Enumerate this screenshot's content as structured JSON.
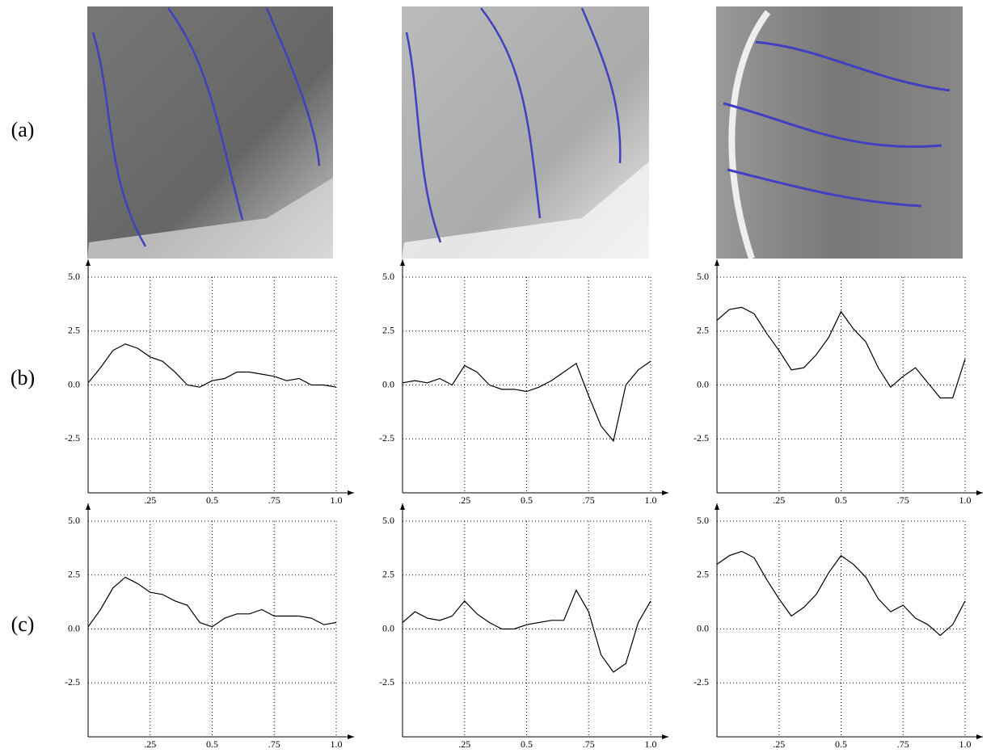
{
  "row_labels": [
    "(a)",
    "(b)",
    "(c)"
  ],
  "chart_data": [
    {
      "type": "line",
      "color": "#000000",
      "grid": true,
      "xlim": [
        0,
        1
      ],
      "ylim": [
        -5,
        5
      ],
      "xticks": [
        {
          "value": 0.25,
          "label": ".25"
        },
        0.5,
        {
          "value": 0.75,
          "label": ".75"
        },
        {
          "value": 1,
          "label": "1.0"
        }
      ],
      "yticks": [
        {
          "value": 5,
          "label": "5.0"
        },
        2.5,
        {
          "value": 0,
          "label": "0.0"
        },
        -2.5
      ],
      "x": [
        0,
        0.05,
        0.1,
        0.15,
        0.2,
        0.25,
        0.3,
        0.35,
        0.4,
        0.45,
        0.5,
        0.55,
        0.6,
        0.65,
        0.7,
        0.75,
        0.8,
        0.85,
        0.9,
        0.95,
        1
      ],
      "values": [
        0.1,
        0.8,
        1.6,
        1.9,
        1.7,
        1.3,
        1.1,
        0.6,
        0.0,
        -0.1,
        0.2,
        0.3,
        0.6,
        0.6,
        0.5,
        0.4,
        0.2,
        0.3,
        0.0,
        0.0,
        -0.1
      ]
    },
    {
      "type": "line",
      "color": "#000000",
      "grid": true,
      "xlim": [
        0,
        1
      ],
      "ylim": [
        -5,
        5
      ],
      "xticks": [
        {
          "value": 0.25,
          "label": ".25"
        },
        0.5,
        {
          "value": 0.75,
          "label": ".75"
        },
        {
          "value": 1,
          "label": "1.0"
        }
      ],
      "yticks": [
        {
          "value": 5,
          "label": "5.0"
        },
        2.5,
        {
          "value": 0,
          "label": "0.0"
        },
        -2.5
      ],
      "x": [
        0,
        0.05,
        0.1,
        0.15,
        0.2,
        0.25,
        0.3,
        0.35,
        0.4,
        0.45,
        0.5,
        0.55,
        0.6,
        0.65,
        0.7,
        0.75,
        0.8,
        0.85,
        0.9,
        0.95,
        1
      ],
      "values": [
        0.1,
        0.2,
        0.1,
        0.3,
        0.0,
        0.9,
        0.6,
        0.0,
        -0.2,
        -0.2,
        -0.3,
        -0.1,
        0.2,
        0.6,
        1.0,
        -0.5,
        -1.9,
        -2.6,
        0.0,
        0.7,
        1.1
      ]
    },
    {
      "type": "line",
      "color": "#000000",
      "grid": true,
      "xlim": [
        0,
        1
      ],
      "ylim": [
        -5,
        5
      ],
      "xticks": [
        {
          "value": 0.25,
          "label": ".25"
        },
        0.5,
        {
          "value": 0.75,
          "label": ".75"
        },
        {
          "value": 1,
          "label": "1.0"
        }
      ],
      "yticks": [
        {
          "value": 5,
          "label": "5.0"
        },
        2.5,
        {
          "value": 0,
          "label": "0.0"
        },
        -2.5
      ],
      "x": [
        0,
        0.05,
        0.1,
        0.15,
        0.2,
        0.25,
        0.3,
        0.35,
        0.4,
        0.45,
        0.5,
        0.55,
        0.6,
        0.65,
        0.7,
        0.75,
        0.8,
        0.85,
        0.9,
        0.95,
        1
      ],
      "values": [
        3.0,
        3.5,
        3.6,
        3.3,
        2.4,
        1.6,
        0.7,
        0.8,
        1.4,
        2.2,
        3.4,
        2.6,
        2.0,
        0.8,
        -0.1,
        0.4,
        0.8,
        0.1,
        -0.6,
        -0.6,
        1.2
      ]
    },
    {
      "type": "line",
      "color": "#000000",
      "grid": true,
      "xlim": [
        0,
        1
      ],
      "ylim": [
        -5,
        5
      ],
      "xticks": [
        {
          "value": 0.25,
          "label": ".25"
        },
        0.5,
        {
          "value": 0.75,
          "label": ".75"
        },
        {
          "value": 1,
          "label": "1.0"
        }
      ],
      "yticks": [
        {
          "value": 5,
          "label": "5.0"
        },
        2.5,
        {
          "value": 0,
          "label": "0.0"
        },
        -2.5
      ],
      "x": [
        0,
        0.05,
        0.1,
        0.15,
        0.2,
        0.25,
        0.3,
        0.35,
        0.4,
        0.45,
        0.5,
        0.55,
        0.6,
        0.65,
        0.7,
        0.75,
        0.8,
        0.85,
        0.9,
        0.95,
        1
      ],
      "values": [
        0.1,
        0.9,
        1.9,
        2.4,
        2.1,
        1.7,
        1.6,
        1.3,
        1.1,
        0.3,
        0.1,
        0.5,
        0.7,
        0.7,
        0.9,
        0.6,
        0.6,
        0.6,
        0.5,
        0.2,
        0.3
      ]
    },
    {
      "type": "line",
      "color": "#000000",
      "grid": true,
      "xlim": [
        0,
        1
      ],
      "ylim": [
        -5,
        5
      ],
      "xticks": [
        {
          "value": 0.25,
          "label": ".25"
        },
        0.5,
        {
          "value": 0.75,
          "label": ".75"
        },
        {
          "value": 1,
          "label": "1.0"
        }
      ],
      "yticks": [
        {
          "value": 5,
          "label": "5.0"
        },
        2.5,
        {
          "value": 0,
          "label": "0.0"
        },
        -2.5
      ],
      "x": [
        0,
        0.05,
        0.1,
        0.15,
        0.2,
        0.25,
        0.3,
        0.35,
        0.4,
        0.45,
        0.5,
        0.55,
        0.6,
        0.65,
        0.7,
        0.75,
        0.8,
        0.85,
        0.9,
        0.95,
        1
      ],
      "values": [
        0.3,
        0.8,
        0.5,
        0.4,
        0.6,
        1.3,
        0.7,
        0.3,
        0.0,
        0.0,
        0.2,
        0.3,
        0.4,
        0.4,
        1.8,
        0.8,
        -1.2,
        -2.0,
        -1.6,
        0.3,
        1.3
      ]
    },
    {
      "type": "line",
      "color": "#000000",
      "grid": true,
      "xlim": [
        0,
        1
      ],
      "ylim": [
        -5,
        5
      ],
      "xticks": [
        {
          "value": 0.25,
          "label": ".25"
        },
        0.5,
        {
          "value": 0.75,
          "label": ".75"
        },
        {
          "value": 1,
          "label": "1.0"
        }
      ],
      "yticks": [
        {
          "value": 5,
          "label": "5.0"
        },
        2.5,
        {
          "value": 0,
          "label": "0.0"
        },
        -2.5
      ],
      "x": [
        0,
        0.05,
        0.1,
        0.15,
        0.2,
        0.25,
        0.3,
        0.35,
        0.4,
        0.45,
        0.5,
        0.55,
        0.6,
        0.65,
        0.7,
        0.75,
        0.8,
        0.85,
        0.9,
        0.95,
        1
      ],
      "values": [
        3.0,
        3.4,
        3.6,
        3.3,
        2.3,
        1.4,
        0.6,
        1.0,
        1.6,
        2.6,
        3.4,
        3.0,
        2.4,
        1.4,
        0.8,
        1.1,
        0.5,
        0.2,
        -0.3,
        0.2,
        1.3
      ]
    }
  ]
}
